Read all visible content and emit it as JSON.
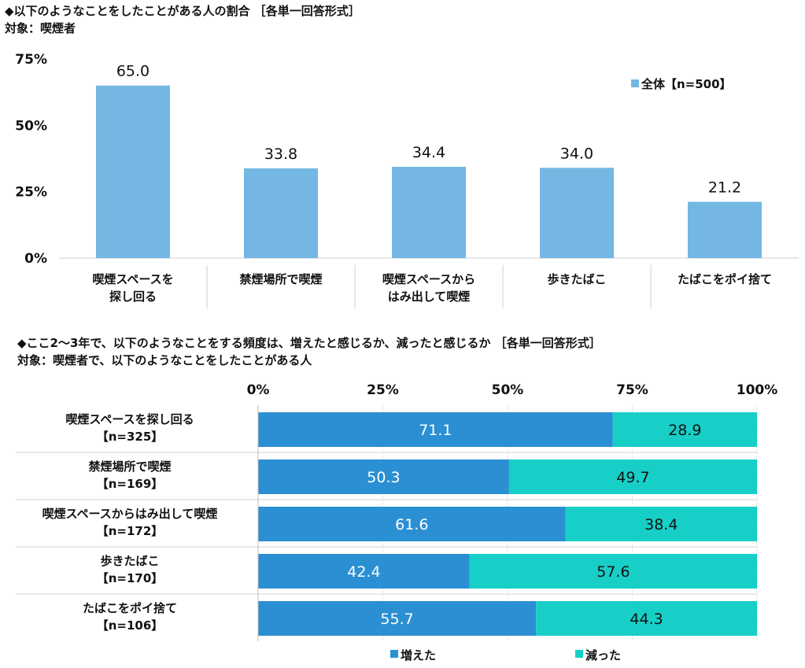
{
  "title1": "◆以下のようなことをしたことがある人の割合 ［各単一回答形式］",
  "subtitle1": "対象：喫煙者",
  "title2": "◆ここ2～3年で、以下のようなことをする頻度は、増えたと感じるか、減ったと感じるか ［各単一回答形式］",
  "subtitle2": "対象：喫煙者で、以下のようなことをしたことがある人",
  "colors": {
    "bar": "#74b7e3",
    "increased": "#2b8fd3",
    "decreased": "#17cfc6",
    "grid": "#d9d9d9"
  },
  "chart_data": [
    {
      "type": "bar",
      "categories": [
        [
          "喫煙スペースを",
          "探し回る"
        ],
        [
          "禁煙場所で喫煙"
        ],
        [
          "喫煙スペースから",
          "はみ出して喫煙"
        ],
        [
          "歩きたばこ"
        ],
        [
          "たばこをポイ捨て"
        ]
      ],
      "series": [
        {
          "name": "全体【n=500】",
          "values": [
            65.0,
            33.8,
            34.4,
            34.0,
            21.2
          ]
        }
      ],
      "value_labels": [
        "65.0",
        "33.8",
        "34.4",
        "34.0",
        "21.2"
      ],
      "yticks": [
        "0%",
        "25%",
        "50%",
        "75%"
      ],
      "ylim": [
        0,
        75
      ],
      "legend": "top-right"
    },
    {
      "type": "bar",
      "orientation": "horizontal-stacked-100",
      "categories": [
        [
          "喫煙スペースを探し回る",
          "【n=325】"
        ],
        [
          "禁煙場所で喫煙",
          "【n=169】"
        ],
        [
          "喫煙スペースからはみ出して喫煙",
          "【n=172】"
        ],
        [
          "歩きたばこ",
          "【n=170】"
        ],
        [
          "たばこをポイ捨て",
          "【n=106】"
        ]
      ],
      "series": [
        {
          "name": "増えた",
          "values": [
            71.1,
            50.3,
            61.6,
            42.4,
            55.7
          ],
          "labels": [
            "71.1",
            "50.3",
            "61.6",
            "42.4",
            "55.7"
          ]
        },
        {
          "name": "減った",
          "values": [
            28.9,
            49.7,
            38.4,
            57.6,
            44.3
          ],
          "labels": [
            "28.9",
            "49.7",
            "38.4",
            "57.6",
            "44.3"
          ]
        }
      ],
      "xticks": [
        "0%",
        "25%",
        "50%",
        "75%",
        "100%"
      ],
      "xlim": [
        0,
        100
      ],
      "legend": "bottom"
    }
  ]
}
